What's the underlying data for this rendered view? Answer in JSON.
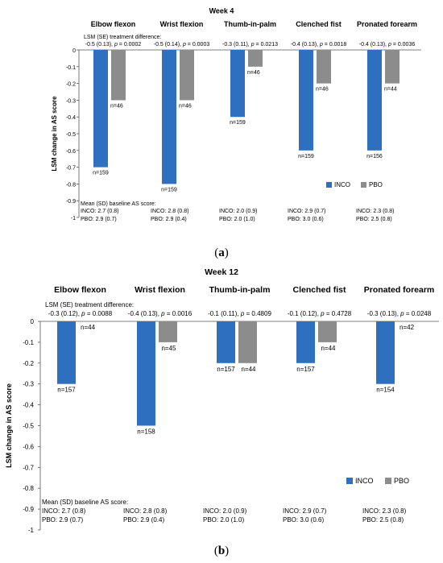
{
  "colors": {
    "inco": "#2e6fc0",
    "pbo": "#8c8c8c",
    "axis": "#555555"
  },
  "chart_data": [
    {
      "type": "bar",
      "panel_label": "(a)",
      "title": "Week 4",
      "ylabel": "LSM change in AS score",
      "ylim": [
        -1,
        0
      ],
      "yticks": [
        "0",
        "-0.1",
        "-0.2",
        "-0.3",
        "-0.4",
        "-0.5",
        "-0.6",
        "-0.7",
        "-0.8",
        "-0.9",
        "-1"
      ],
      "legend": {
        "placement": "bottom-right",
        "entries": [
          "INCO",
          "PBO"
        ]
      },
      "treatment_diff_header": "LSM (SE) treatment difference:",
      "baseline_header": "Mean (SD) baseline AS score:",
      "categories": [
        "Elbow flexon",
        "Wrist flexion",
        "Thumb-in-palm",
        "Clenched fist",
        "Pronated forearm"
      ],
      "series": [
        {
          "name": "INCO",
          "values": [
            -0.7,
            -0.8,
            -0.4,
            -0.6,
            -0.6
          ],
          "n": [
            "n=159",
            "n=159",
            "n=159",
            "n=159",
            "n=156"
          ]
        },
        {
          "name": "PBO",
          "values": [
            -0.3,
            -0.3,
            -0.1,
            -0.2,
            -0.2
          ],
          "n": [
            "n=46",
            "n=46",
            "n=46",
            "n=46",
            "n=44"
          ]
        }
      ],
      "treatment_diff": [
        {
          "est": "-0.5 (0.13), ",
          "p": "= 0.0002"
        },
        {
          "est": "-0.5 (0.14), ",
          "p": "= 0.0003"
        },
        {
          "est": "-0.3 (0.11), ",
          "p": "= 0.0213"
        },
        {
          "est": "-0.4 (0.13), ",
          "p": "= 0.0018"
        },
        {
          "est": "-0.4 (0.13), ",
          "p": "= 0.0036"
        }
      ],
      "baseline": [
        {
          "inco": "INCO: 2.7 (0.8)",
          "pbo": "PBO: 2.9 (0.7)"
        },
        {
          "inco": "INCO: 2.8 (0.8)",
          "pbo": "PBO: 2.9 (0.4)"
        },
        {
          "inco": "INCO: 2.0 (0.9)",
          "pbo": "PBO: 2.0 (1.0)"
        },
        {
          "inco": "INCO: 2.9 (0.7)",
          "pbo": "PBO: 3.0 (0.6)"
        },
        {
          "inco": "INCO: 2.3 (0.8)",
          "pbo": "PBO: 2.5 (0.8)"
        }
      ]
    },
    {
      "type": "bar",
      "panel_label": "(b)",
      "title": "Week 12",
      "ylabel": "LSM change in AS score",
      "ylim": [
        -1,
        0
      ],
      "yticks": [
        "0",
        "-0.1",
        "-0.2",
        "-0.3",
        "-0.4",
        "-0.5",
        "-0.6",
        "-0.7",
        "-0.8",
        "-0.9",
        "-1"
      ],
      "legend": {
        "placement": "bottom-right",
        "entries": [
          "INCO",
          "PBO"
        ]
      },
      "treatment_diff_header": "LSM (SE) treatment difference:",
      "baseline_header": "Mean (SD) baseline AS score:",
      "categories": [
        "Elbow flexon",
        "Wrist flexion",
        "Thumb-in-palm",
        "Clenched fist",
        "Pronated forearm"
      ],
      "series": [
        {
          "name": "INCO",
          "values": [
            -0.3,
            -0.5,
            -0.2,
            -0.2,
            -0.3
          ],
          "n": [
            "n=157",
            "n=158",
            "n=157",
            "n=157",
            "n=154"
          ]
        },
        {
          "name": "PBO",
          "values": [
            0,
            -0.1,
            -0.2,
            -0.1,
            0
          ],
          "n": [
            "n=44",
            "n=45",
            "n=44",
            "n=44",
            "n=42"
          ]
        }
      ],
      "treatment_diff": [
        {
          "est": "-0.3 (0.12), ",
          "p": "= 0.0088"
        },
        {
          "est": "-0.4 (0.13), ",
          "p": "= 0.0016"
        },
        {
          "est": "-0.1 (0.11), ",
          "p": "= 0.4809"
        },
        {
          "est": "-0.1 (0.12), ",
          "p": "= 0.4728"
        },
        {
          "est": "-0.3 (0.13), ",
          "p": "= 0.0248"
        }
      ],
      "baseline": [
        {
          "inco": "INCO: 2.7 (0.8)",
          "pbo": "PBO: 2.9 (0.7)"
        },
        {
          "inco": "INCO: 2.8 (0.8)",
          "pbo": "PBO: 2.9 (0.4)"
        },
        {
          "inco": "INCO: 2.0 (0.9)",
          "pbo": "PBO: 2.0 (1.0)"
        },
        {
          "inco": "INCO: 2.9 (0.7)",
          "pbo": "PBO: 3.0 (0.6)"
        },
        {
          "inco": "INCO: 2.3 (0.8)",
          "pbo": "PBO: 2.5 (0.8)"
        }
      ]
    }
  ]
}
